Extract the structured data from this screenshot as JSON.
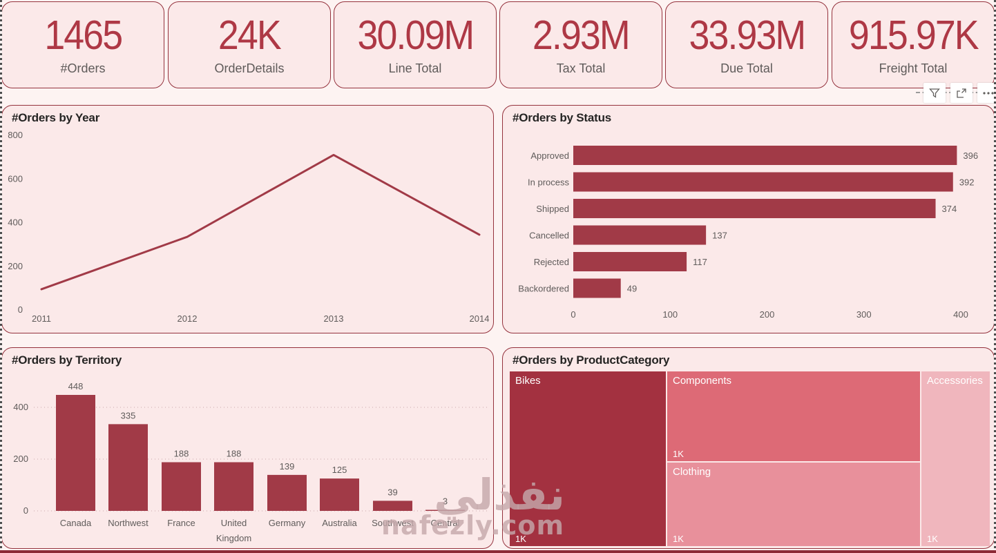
{
  "page": {
    "background": "#fdf3f2",
    "panel_background": "#fbe9e9",
    "panel_border": "#94323d",
    "accent": "#a13a47",
    "kpi_value_color": "#ae3845",
    "text_gray": "#5f5b5a",
    "title_color": "#252423",
    "bottom_bar_color": "#8c2936"
  },
  "kpi_cards": [
    {
      "value": "1465",
      "label": "#Orders"
    },
    {
      "value": "24K",
      "label": "OrderDetails"
    },
    {
      "value": "30.09M",
      "label": "Line Total"
    },
    {
      "value": "2.93M",
      "label": "Tax Total"
    },
    {
      "value": "33.93M",
      "label": "Due Total"
    },
    {
      "value": "915.97K",
      "label": "Freight Total"
    }
  ],
  "toolbar": {
    "icons": [
      "filter-icon",
      "focus-mode-icon",
      "more-options-icon"
    ]
  },
  "watermark": {
    "text_arabic": "نفذلي",
    "text_latin": "nafezly.com"
  },
  "chart_data": [
    {
      "id": "orders_by_year",
      "type": "line",
      "title": "#Orders by Year",
      "x": [
        "2011",
        "2012",
        "2013",
        "2014"
      ],
      "values": [
        95,
        335,
        710,
        345
      ],
      "ylim": [
        0,
        800
      ],
      "yticks": [
        0,
        200,
        400,
        600,
        800
      ],
      "grid": false,
      "legend": "none",
      "line_color": "#a13a47"
    },
    {
      "id": "orders_by_status",
      "type": "bar",
      "orientation": "horizontal",
      "title": "#Orders by Status",
      "categories": [
        "Approved",
        "In process",
        "Shipped",
        "Cancelled",
        "Rejected",
        "Backordered"
      ],
      "values": [
        396,
        392,
        374,
        137,
        117,
        49
      ],
      "xlim": [
        0,
        400
      ],
      "xticks": [
        0,
        100,
        200,
        300,
        400
      ],
      "grid": false,
      "data_labels": true,
      "bar_color": "#a13a47"
    },
    {
      "id": "orders_by_territory",
      "type": "bar",
      "orientation": "vertical",
      "title": "#Orders by Territory",
      "categories": [
        "Canada",
        "Northwest",
        "France",
        "United Kingdom",
        "Germany",
        "Australia",
        "Southwest",
        "Central"
      ],
      "values": [
        448,
        335,
        188,
        188,
        139,
        125,
        39,
        3
      ],
      "ylim": [
        0,
        500
      ],
      "yticks": [
        0,
        200,
        400
      ],
      "grid": "dotted-horizontal",
      "data_labels": true,
      "bar_color": "#a13a47"
    },
    {
      "id": "orders_by_product_category",
      "type": "treemap",
      "title": "#Orders by ProductCategory",
      "items": [
        {
          "label": "Bikes",
          "value_label": "1K",
          "color": "#a33140"
        },
        {
          "label": "Components",
          "value_label": "1K",
          "color": "#dd6a76"
        },
        {
          "label": "Clothing",
          "value_label": "1K",
          "color": "#e8909b"
        },
        {
          "label": "Accessories",
          "value_label": "1K",
          "color": "#f0b6bd"
        }
      ]
    }
  ]
}
